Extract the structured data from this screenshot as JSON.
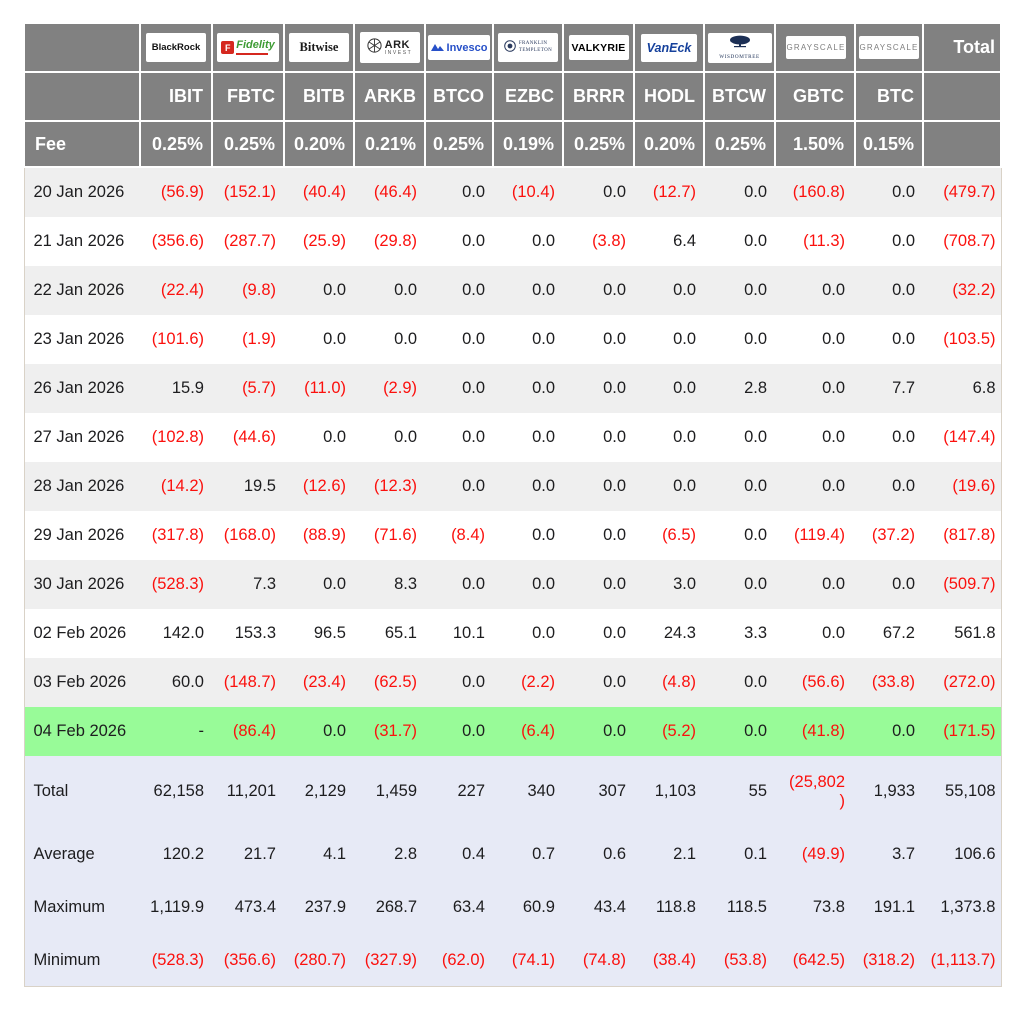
{
  "labels": {
    "fee": "Fee",
    "total": "Total"
  },
  "colors": {
    "header_gray": "#818181",
    "row_stripe": "#efefef",
    "highlight_green": "#98fb98",
    "summary_bg": "#e7eaf6",
    "negative_red": "#fb100d"
  },
  "table": {
    "providers": [
      {
        "name": "BlackRock",
        "ticker": "IBIT",
        "fee": "0.25%",
        "logo": {
          "type": "blackrock",
          "text": "BlackRock"
        }
      },
      {
        "name": "Fidelity",
        "ticker": "FBTC",
        "fee": "0.25%",
        "logo": {
          "type": "fidelity",
          "text": "Fidelity",
          "icon": "F"
        }
      },
      {
        "name": "Bitwise",
        "ticker": "BITB",
        "fee": "0.20%",
        "logo": {
          "type": "bitwise",
          "text": "Bitwise"
        }
      },
      {
        "name": "ARK Invest",
        "ticker": "ARKB",
        "fee": "0.21%",
        "logo": {
          "type": "ark",
          "text": "ARK",
          "subtext": "INVEST"
        }
      },
      {
        "name": "Invesco",
        "ticker": "BTCO",
        "fee": "0.25%",
        "logo": {
          "type": "invesco",
          "text": "Invesco"
        }
      },
      {
        "name": "Franklin Templeton",
        "ticker": "EZBC",
        "fee": "0.19%",
        "logo": {
          "type": "franklin",
          "text": "FRANKLIN",
          "subtext": "TEMPLETON"
        }
      },
      {
        "name": "Valkyrie",
        "ticker": "BRRR",
        "fee": "0.25%",
        "logo": {
          "type": "valkyrie",
          "text": "VALKYRIE"
        }
      },
      {
        "name": "VanEck",
        "ticker": "HODL",
        "fee": "0.20%",
        "logo": {
          "type": "vaneck",
          "text": "VanEck"
        }
      },
      {
        "name": "WisdomTree",
        "ticker": "BTCW",
        "fee": "0.25%",
        "logo": {
          "type": "wisdomtree",
          "text": "WISDOMTREE"
        }
      },
      {
        "name": "Grayscale",
        "ticker": "GBTC",
        "fee": "1.50%",
        "logo": {
          "type": "grayscale",
          "text": "GRAYSCALE"
        }
      },
      {
        "name": "Grayscale",
        "ticker": "BTC",
        "fee": "0.15%",
        "logo": {
          "type": "grayscale",
          "text": "GRAYSCALE"
        }
      }
    ],
    "rows": [
      {
        "date": "20 Jan 2026",
        "highlight": false,
        "values": [
          "(56.9)",
          "(152.1)",
          "(40.4)",
          "(46.4)",
          "0.0",
          "(10.4)",
          "0.0",
          "(12.7)",
          "0.0",
          "(160.8)",
          "0.0",
          "(479.7)"
        ]
      },
      {
        "date": "21 Jan 2026",
        "highlight": false,
        "values": [
          "(356.6)",
          "(287.7)",
          "(25.9)",
          "(29.8)",
          "0.0",
          "0.0",
          "(3.8)",
          "6.4",
          "0.0",
          "(11.3)",
          "0.0",
          "(708.7)"
        ]
      },
      {
        "date": "22 Jan 2026",
        "highlight": false,
        "values": [
          "(22.4)",
          "(9.8)",
          "0.0",
          "0.0",
          "0.0",
          "0.0",
          "0.0",
          "0.0",
          "0.0",
          "0.0",
          "0.0",
          "(32.2)"
        ]
      },
      {
        "date": "23 Jan 2026",
        "highlight": false,
        "values": [
          "(101.6)",
          "(1.9)",
          "0.0",
          "0.0",
          "0.0",
          "0.0",
          "0.0",
          "0.0",
          "0.0",
          "0.0",
          "0.0",
          "(103.5)"
        ]
      },
      {
        "date": "26 Jan 2026",
        "highlight": false,
        "values": [
          "15.9",
          "(5.7)",
          "(11.0)",
          "(2.9)",
          "0.0",
          "0.0",
          "0.0",
          "0.0",
          "2.8",
          "0.0",
          "7.7",
          "6.8"
        ]
      },
      {
        "date": "27 Jan 2026",
        "highlight": false,
        "values": [
          "(102.8)",
          "(44.6)",
          "0.0",
          "0.0",
          "0.0",
          "0.0",
          "0.0",
          "0.0",
          "0.0",
          "0.0",
          "0.0",
          "(147.4)"
        ]
      },
      {
        "date": "28 Jan 2026",
        "highlight": false,
        "values": [
          "(14.2)",
          "19.5",
          "(12.6)",
          "(12.3)",
          "0.0",
          "0.0",
          "0.0",
          "0.0",
          "0.0",
          "0.0",
          "0.0",
          "(19.6)"
        ]
      },
      {
        "date": "29 Jan 2026",
        "highlight": false,
        "values": [
          "(317.8)",
          "(168.0)",
          "(88.9)",
          "(71.6)",
          "(8.4)",
          "0.0",
          "0.0",
          "(6.5)",
          "0.0",
          "(119.4)",
          "(37.2)",
          "(817.8)"
        ]
      },
      {
        "date": "30 Jan 2026",
        "highlight": false,
        "values": [
          "(528.3)",
          "7.3",
          "0.0",
          "8.3",
          "0.0",
          "0.0",
          "0.0",
          "3.0",
          "0.0",
          "0.0",
          "0.0",
          "(509.7)"
        ]
      },
      {
        "date": "02 Feb 2026",
        "highlight": false,
        "values": [
          "142.0",
          "153.3",
          "96.5",
          "65.1",
          "10.1",
          "0.0",
          "0.0",
          "24.3",
          "3.3",
          "0.0",
          "67.2",
          "561.8"
        ]
      },
      {
        "date": "03 Feb 2026",
        "highlight": false,
        "values": [
          "60.0",
          "(148.7)",
          "(23.4)",
          "(62.5)",
          "0.0",
          "(2.2)",
          "0.0",
          "(4.8)",
          "0.0",
          "(56.6)",
          "(33.8)",
          "(272.0)"
        ]
      },
      {
        "date": "04 Feb 2026",
        "highlight": true,
        "values": [
          "-",
          "(86.4)",
          "0.0",
          "(31.7)",
          "0.0",
          "(6.4)",
          "0.0",
          "(5.2)",
          "0.0",
          "(41.8)",
          "0.0",
          "(171.5)"
        ]
      }
    ],
    "summary": [
      {
        "label": "Total",
        "values": [
          "62,158",
          "11,201",
          "2,129",
          "1,459",
          "227",
          "340",
          "307",
          "1,103",
          "55",
          "(25,802)",
          "1,933",
          "55,108"
        ]
      },
      {
        "label": "Average",
        "values": [
          "120.2",
          "21.7",
          "4.1",
          "2.8",
          "0.4",
          "0.7",
          "0.6",
          "2.1",
          "0.1",
          "(49.9)",
          "3.7",
          "106.6"
        ]
      },
      {
        "label": "Maximum",
        "values": [
          "1,119.9",
          "473.4",
          "237.9",
          "268.7",
          "63.4",
          "60.9",
          "43.4",
          "118.8",
          "118.5",
          "73.8",
          "191.1",
          "1,373.8"
        ]
      },
      {
        "label": "Minimum",
        "values": [
          "(528.3)",
          "(356.6)",
          "(280.7)",
          "(327.9)",
          "(62.0)",
          "(74.1)",
          "(74.8)",
          "(38.4)",
          "(53.8)",
          "(642.5)",
          "(318.2)",
          "(1,113.7)"
        ]
      }
    ]
  }
}
